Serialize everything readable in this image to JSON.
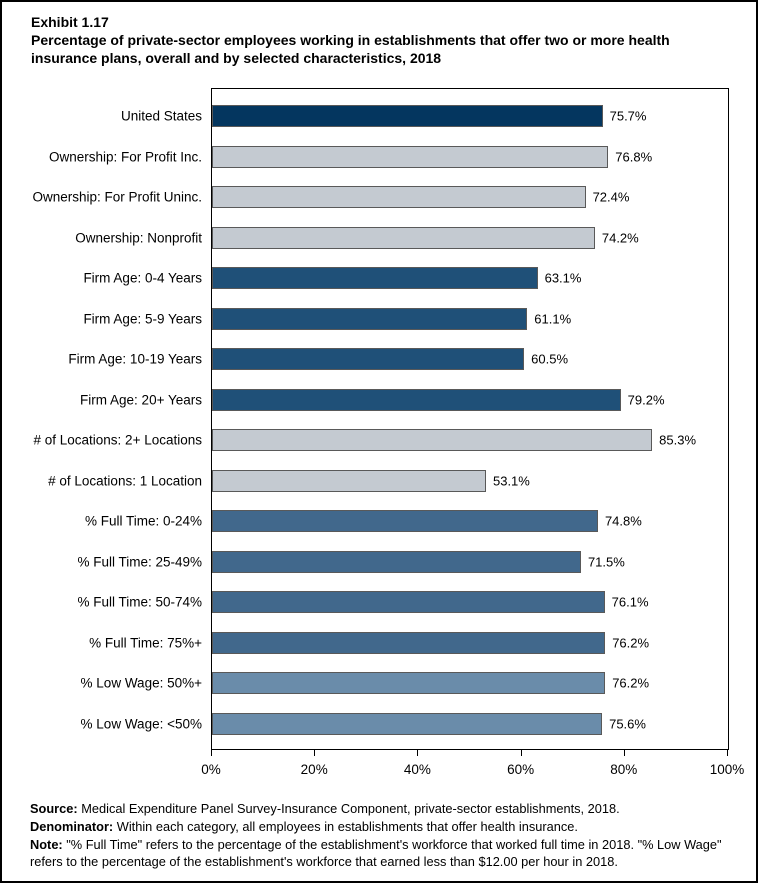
{
  "page": {
    "exhibit_label": "Exhibit 1.17",
    "title": "Percentage of private-sector employees working in establishments that offer two or more health insurance plans, overall and by selected characteristics, 2018"
  },
  "chart_data": {
    "type": "bar",
    "orientation": "horizontal",
    "title": "Percentage of private-sector employees working in establishments that offer two or more health insurance plans, overall and by selected characteristics, 2018",
    "categories": [
      "United States",
      "Ownership: For Profit Inc.",
      "Ownership: For Profit Uninc.",
      "Ownership: Nonprofit",
      "Firm Age: 0-4 Years",
      "Firm Age: 5-9 Years",
      "Firm Age: 10-19 Years",
      "Firm Age: 20+ Years",
      "# of Locations: 2+ Locations",
      "# of Locations: 1 Location",
      "% Full Time: 0-24%",
      "% Full Time: 25-49%",
      "% Full Time: 50-74%",
      "% Full Time: 75%+",
      "% Low Wage: 50%+",
      "% Low Wage: <50%"
    ],
    "values": [
      75.7,
      76.8,
      72.4,
      74.2,
      63.1,
      61.1,
      60.5,
      79.2,
      85.3,
      53.1,
      74.8,
      71.5,
      76.1,
      76.2,
      76.2,
      75.6
    ],
    "value_labels": [
      "75.7%",
      "76.8%",
      "72.4%",
      "74.2%",
      "63.1%",
      "61.1%",
      "60.5%",
      "79.2%",
      "85.3%",
      "53.1%",
      "74.8%",
      "71.5%",
      "76.1%",
      "76.2%",
      "76.2%",
      "75.6%"
    ],
    "bar_groups": [
      "overall",
      "ownership",
      "ownership",
      "ownership",
      "firm_age",
      "firm_age",
      "firm_age",
      "firm_age",
      "locations",
      "locations",
      "full_time",
      "full_time",
      "full_time",
      "full_time",
      "low_wage",
      "low_wage"
    ],
    "group_colors": {
      "overall": "#04365f",
      "ownership": "#c4cad1",
      "firm_age": "#1f5078",
      "locations": "#c4cad1",
      "full_time": "#41688c",
      "low_wage": "#6a8caa"
    },
    "bar_border_color": "#595959",
    "xlabel": "",
    "ylabel": "",
    "xlim": [
      0,
      100
    ],
    "x_ticks": [
      "0%",
      "20%",
      "40%",
      "60%",
      "80%",
      "100%"
    ],
    "x_tick_values": [
      0,
      20,
      40,
      60,
      80,
      100
    ],
    "grid": false,
    "legend": false
  },
  "footnotes": [
    {
      "label": "Source:",
      "text": " Medical Expenditure Panel Survey-Insurance Component, private-sector establishments, 2018."
    },
    {
      "label": "Denominator:",
      "text": " Within each category, all employees in establishments that offer health insurance."
    },
    {
      "label": "Note:",
      "text": " \"% Full Time\" refers to the percentage of the establishment's workforce that worked full time in 2018. \"% Low Wage\" refers to the percentage of the establishment's workforce that earned less than $12.00 per hour in 2018."
    }
  ]
}
